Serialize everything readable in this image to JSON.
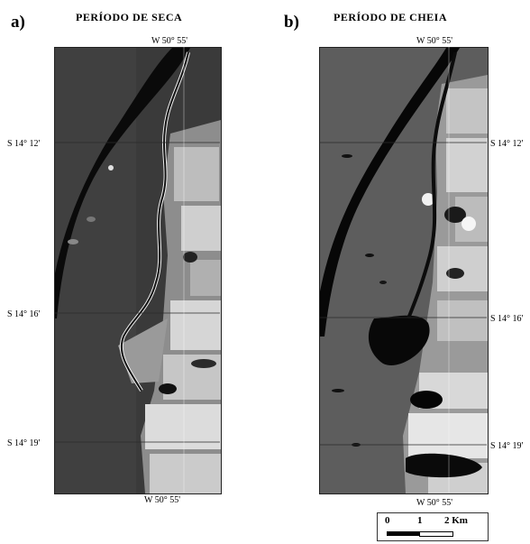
{
  "panel_a": {
    "letter": "a)",
    "title": "PERÍODO DE SECA",
    "top_lon": "W 50° 55'",
    "bottom_lon": "W 50° 55'",
    "lat_1": "S 14° 12'",
    "lat_2": "S 14° 16'",
    "lat_3": "S 14° 19'"
  },
  "panel_b": {
    "letter": "b)",
    "title": "PERÍODO DE CHEIA",
    "top_lon": "W 50° 55'",
    "bottom_lon": "W 50° 55'",
    "lat_1": "S 14° 12'",
    "lat_2": "S 14° 16'",
    "lat_3": "S 14° 19'"
  },
  "scale_bar": {
    "label_0": "0",
    "label_1": "1",
    "label_2": "2 Km"
  },
  "colors": {
    "dry_terrain": "#3a3a3a",
    "wet_terrain": "#5d5d5d",
    "river": "#0a0a0a",
    "field_light": "#c8c8c8"
  }
}
